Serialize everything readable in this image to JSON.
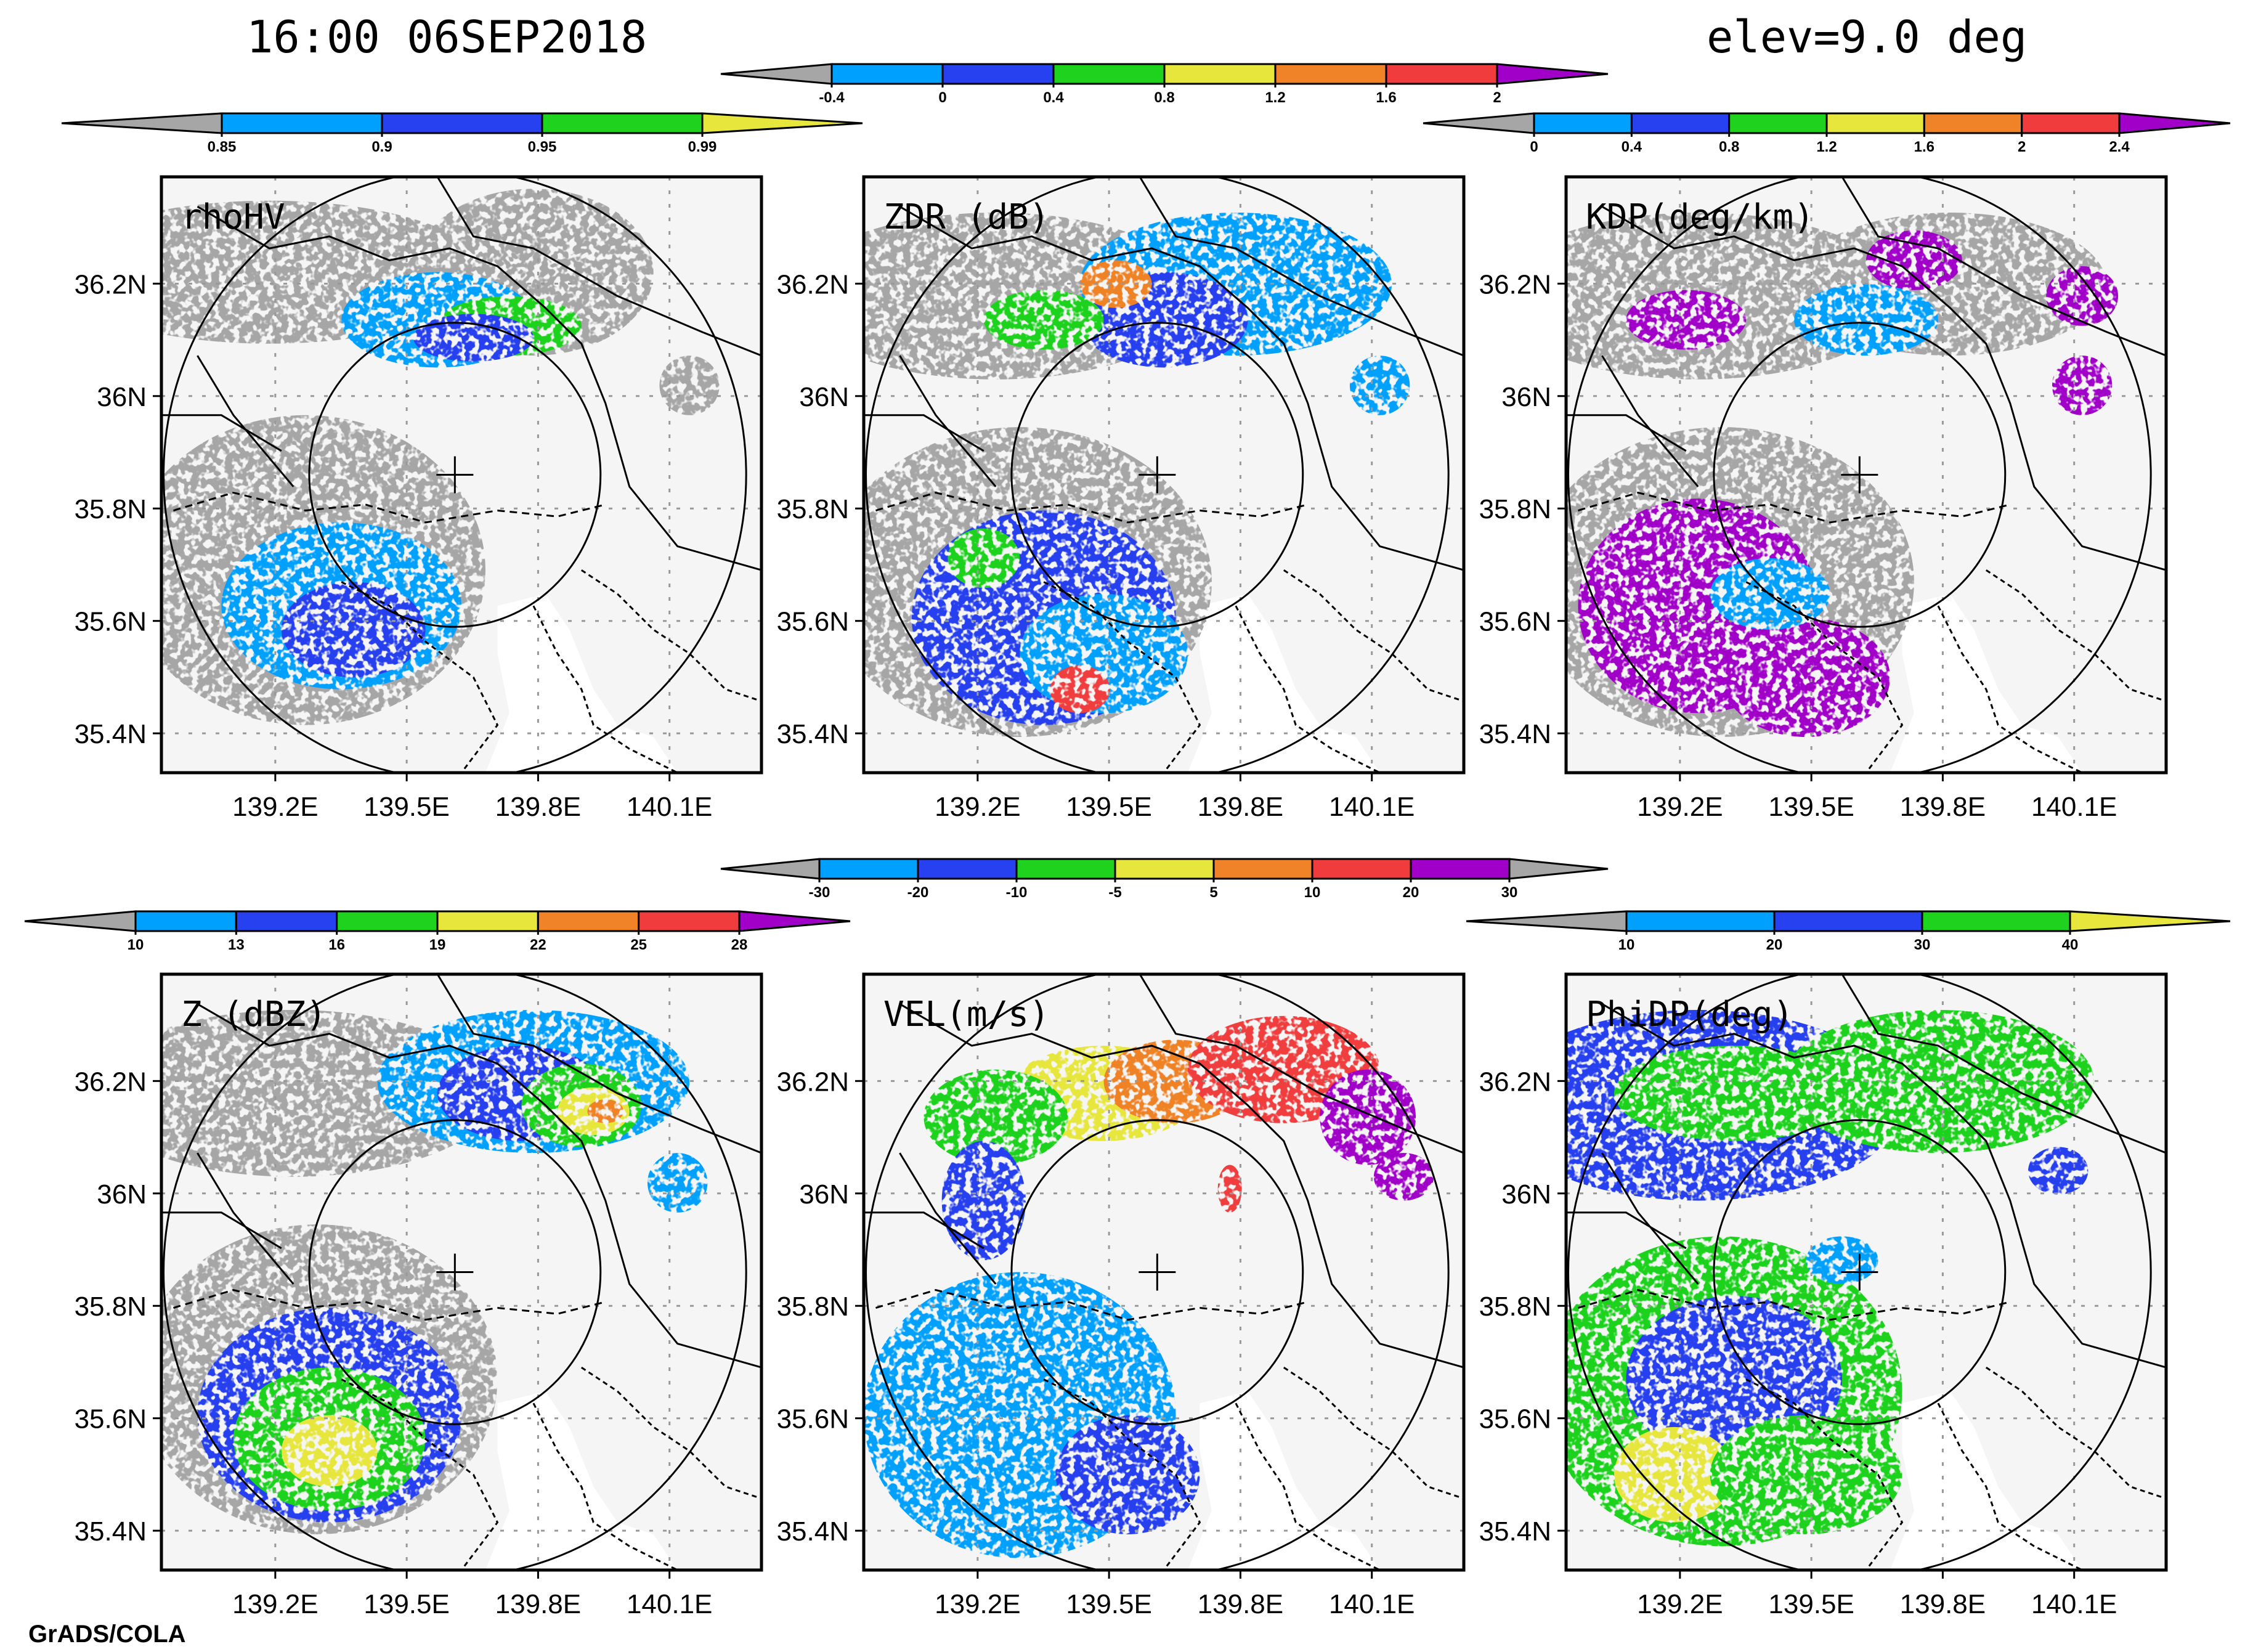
{
  "header": {
    "time": "16:00 06SEP2018",
    "elevation": "elev=9.0 deg"
  },
  "footer": {
    "credit": "GrADS/COLA"
  },
  "colors": {
    "gray": "#a6a6a6",
    "lightblue": "#00a0ff",
    "blue": "#2841f0",
    "green": "#1ed21e",
    "yellow": "#e6e63c",
    "orange": "#f08228",
    "red": "#f03c3c",
    "purple": "#a000c8",
    "map_bg": "#f5f5f5"
  },
  "colorbars": {
    "rhohv": {
      "ticks": [
        "0.85",
        "0.9",
        "0.95",
        "0.99"
      ],
      "colors": [
        "lightblue",
        "blue",
        "green"
      ],
      "left_arrow": "gray",
      "right_arrow": "yellow"
    },
    "zdr": {
      "ticks": [
        "-0.4",
        "0",
        "0.4",
        "0.8",
        "1.2",
        "1.6",
        "2"
      ],
      "colors": [
        "lightblue",
        "blue",
        "green",
        "yellow",
        "orange",
        "red"
      ],
      "left_arrow": "gray",
      "right_arrow": "purple"
    },
    "kdp": {
      "ticks": [
        "0",
        "0.4",
        "0.8",
        "1.2",
        "1.6",
        "2",
        "2.4"
      ],
      "colors": [
        "lightblue",
        "blue",
        "green",
        "yellow",
        "orange",
        "red"
      ],
      "left_arrow": "gray",
      "right_arrow": "purple"
    },
    "z": {
      "ticks": [
        "10",
        "13",
        "16",
        "19",
        "22",
        "25",
        "28"
      ],
      "colors": [
        "lightblue",
        "blue",
        "green",
        "yellow",
        "orange",
        "red"
      ],
      "left_arrow": "gray",
      "right_arrow": "purple"
    },
    "vel": {
      "ticks": [
        "-30",
        "-20",
        "-10",
        "-5",
        "5",
        "10",
        "20",
        "30"
      ],
      "colors": [
        "lightblue",
        "blue",
        "green",
        "yellow",
        "orange",
        "red",
        "purple"
      ],
      "left_arrow": "gray",
      "right_arrow": "gray"
    },
    "phidp": {
      "ticks": [
        "10",
        "20",
        "30",
        "40"
      ],
      "colors": [
        "lightblue",
        "blue",
        "green"
      ],
      "left_arrow": "gray",
      "right_arrow": "yellow"
    }
  },
  "panels": [
    {
      "id": "rhohv",
      "title": "rhoHV",
      "colorbar": "rhohv",
      "echoes": [
        [
          "gray",
          0.18,
          0.16,
          0.36,
          0.12
        ],
        [
          "gray",
          0.62,
          0.16,
          0.2,
          0.14
        ],
        [
          "lightblue",
          0.46,
          0.24,
          0.16,
          0.08
        ],
        [
          "green",
          0.58,
          0.25,
          0.12,
          0.05
        ],
        [
          "blue",
          0.52,
          0.27,
          0.1,
          0.04
        ],
        [
          "gray",
          0.24,
          0.66,
          0.3,
          0.26
        ],
        [
          "lightblue",
          0.3,
          0.72,
          0.2,
          0.14
        ],
        [
          "blue",
          0.32,
          0.76,
          0.12,
          0.08
        ],
        [
          "gray",
          0.88,
          0.35,
          0.05,
          0.05
        ],
        [
          "gray",
          0.4,
          0.52,
          0.06,
          0.04
        ]
      ]
    },
    {
      "id": "zdr",
      "title": "ZDR (dB)",
      "colorbar": "zdr",
      "echoes": [
        [
          "gray",
          0.22,
          0.2,
          0.34,
          0.14
        ],
        [
          "lightblue",
          0.62,
          0.18,
          0.26,
          0.12
        ],
        [
          "blue",
          0.5,
          0.24,
          0.14,
          0.08
        ],
        [
          "green",
          0.3,
          0.24,
          0.1,
          0.05
        ],
        [
          "orange",
          0.42,
          0.18,
          0.06,
          0.04
        ],
        [
          "gray",
          0.26,
          0.68,
          0.32,
          0.26
        ],
        [
          "blue",
          0.3,
          0.74,
          0.22,
          0.18
        ],
        [
          "lightblue",
          0.4,
          0.8,
          0.14,
          0.1
        ],
        [
          "green",
          0.2,
          0.64,
          0.06,
          0.05
        ],
        [
          "red",
          0.36,
          0.86,
          0.05,
          0.04
        ],
        [
          "lightblue",
          0.86,
          0.35,
          0.05,
          0.05
        ]
      ]
    },
    {
      "id": "kdp",
      "title": "KDP(deg/km)",
      "colorbar": "kdp",
      "echoes": [
        [
          "gray",
          0.22,
          0.2,
          0.34,
          0.14
        ],
        [
          "gray",
          0.64,
          0.18,
          0.26,
          0.12
        ],
        [
          "purple",
          0.2,
          0.24,
          0.1,
          0.05
        ],
        [
          "purple",
          0.58,
          0.14,
          0.08,
          0.05
        ],
        [
          "purple",
          0.86,
          0.2,
          0.06,
          0.05
        ],
        [
          "lightblue",
          0.5,
          0.24,
          0.12,
          0.06
        ],
        [
          "gray",
          0.26,
          0.68,
          0.32,
          0.26
        ],
        [
          "purple",
          0.22,
          0.72,
          0.2,
          0.18
        ],
        [
          "purple",
          0.4,
          0.84,
          0.14,
          0.1
        ],
        [
          "lightblue",
          0.34,
          0.7,
          0.1,
          0.06
        ],
        [
          "purple",
          0.86,
          0.35,
          0.05,
          0.05
        ]
      ]
    },
    {
      "id": "z",
      "title": "Z (dBZ)",
      "colorbar": "z",
      "echoes": [
        [
          "gray",
          0.22,
          0.2,
          0.34,
          0.14
        ],
        [
          "lightblue",
          0.62,
          0.18,
          0.26,
          0.12
        ],
        [
          "blue",
          0.6,
          0.2,
          0.14,
          0.08
        ],
        [
          "green",
          0.7,
          0.22,
          0.1,
          0.07
        ],
        [
          "yellow",
          0.72,
          0.23,
          0.06,
          0.04
        ],
        [
          "orange",
          0.74,
          0.23,
          0.03,
          0.02
        ],
        [
          "gray",
          0.26,
          0.68,
          0.3,
          0.26
        ],
        [
          "blue",
          0.28,
          0.74,
          0.22,
          0.18
        ],
        [
          "green",
          0.28,
          0.78,
          0.16,
          0.12
        ],
        [
          "yellow",
          0.28,
          0.8,
          0.08,
          0.06
        ],
        [
          "lightblue",
          0.86,
          0.35,
          0.05,
          0.05
        ]
      ]
    },
    {
      "id": "vel",
      "title": "VEL(m/s)",
      "colorbar": "vel",
      "echoes": [
        [
          "yellow",
          0.4,
          0.2,
          0.16,
          0.08
        ],
        [
          "green",
          0.22,
          0.24,
          0.12,
          0.08
        ],
        [
          "orange",
          0.52,
          0.18,
          0.12,
          0.07
        ],
        [
          "red",
          0.7,
          0.16,
          0.16,
          0.09
        ],
        [
          "purple",
          0.84,
          0.24,
          0.08,
          0.08
        ],
        [
          "purple",
          0.9,
          0.34,
          0.05,
          0.04
        ],
        [
          "blue",
          0.2,
          0.38,
          0.07,
          0.1
        ],
        [
          "lightblue",
          0.26,
          0.74,
          0.26,
          0.24
        ],
        [
          "blue",
          0.44,
          0.84,
          0.12,
          0.1
        ],
        [
          "red",
          0.61,
          0.36,
          0.02,
          0.04
        ]
      ]
    },
    {
      "id": "phidp",
      "title": "PhiDP(deg)",
      "colorbar": "phidp",
      "echoes": [
        [
          "blue",
          0.22,
          0.22,
          0.34,
          0.16
        ],
        [
          "green",
          0.62,
          0.18,
          0.26,
          0.12
        ],
        [
          "green",
          0.28,
          0.2,
          0.2,
          0.08
        ],
        [
          "blue",
          0.82,
          0.33,
          0.05,
          0.04
        ],
        [
          "green",
          0.26,
          0.7,
          0.3,
          0.26
        ],
        [
          "blue",
          0.28,
          0.68,
          0.18,
          0.14
        ],
        [
          "yellow",
          0.18,
          0.84,
          0.1,
          0.08
        ],
        [
          "green",
          0.4,
          0.84,
          0.16,
          0.1
        ],
        [
          "lightblue",
          0.46,
          0.48,
          0.06,
          0.04
        ]
      ]
    }
  ],
  "axes": {
    "x_ticks": [
      "139.2E",
      "139.5E",
      "139.8E",
      "140.1E"
    ],
    "y_ticks": [
      "36.2N",
      "36N",
      "35.8N",
      "35.6N",
      "35.4N"
    ],
    "x_values": [
      139.2,
      139.5,
      139.8,
      140.1
    ],
    "y_values": [
      36.2,
      36.0,
      35.8,
      35.6,
      35.4
    ],
    "lon_range": [
      138.94,
      140.31
    ],
    "lat_range": [
      35.33,
      36.39
    ],
    "radar_lon": 139.61,
    "radar_lat": 35.86,
    "range_rings_km": [
      30,
      60
    ]
  }
}
